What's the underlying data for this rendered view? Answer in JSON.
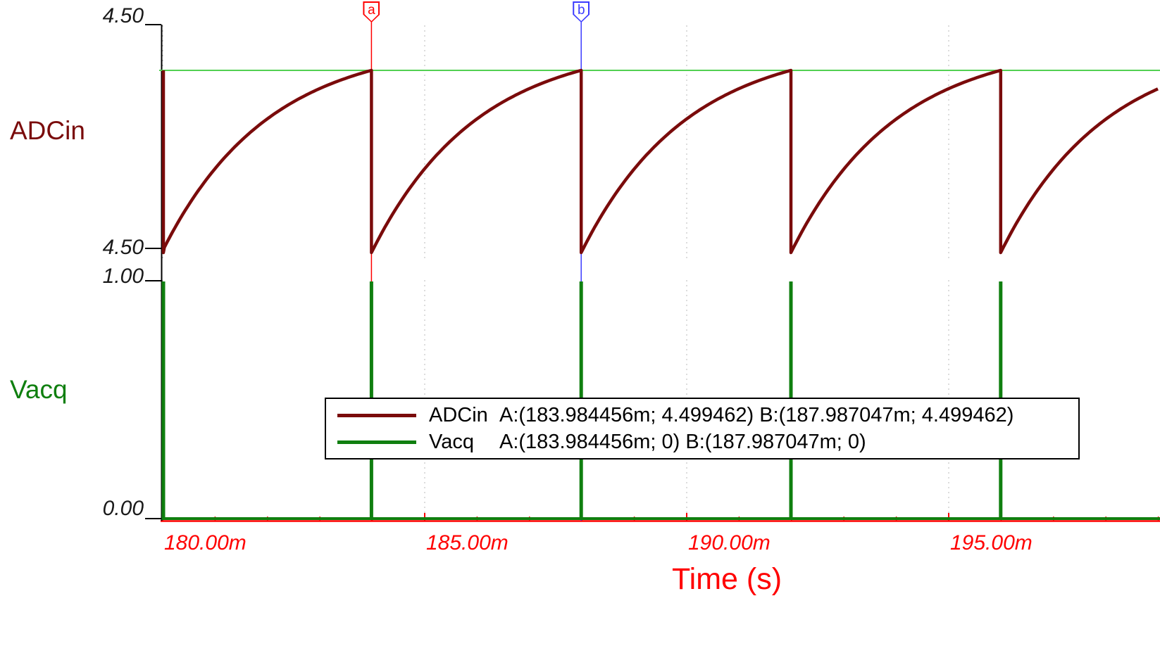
{
  "labels": {
    "adcin": "ADCin",
    "vacq": "Vacq",
    "time_axis": "Time (s)"
  },
  "y_axis": {
    "adcin_top": "4.50",
    "adcin_bottom": "4.50",
    "vacq_top": "1.00",
    "vacq_bottom": "0.00"
  },
  "x_axis": {
    "tick_labels": [
      "180.00m",
      "185.00m",
      "190.00m",
      "195.00m"
    ],
    "tick_values_ms": [
      180,
      185,
      190,
      195
    ],
    "minor_step_ms": 1,
    "unit": "s"
  },
  "cursors": [
    {
      "id": "a",
      "time_ms": 183.984456,
      "color": "#ff0000"
    },
    {
      "id": "b",
      "time_ms": 187.987047,
      "color": "#3b3bff"
    }
  ],
  "legend": {
    "rows": [
      {
        "name": "ADCin",
        "color": "#7a0b0b",
        "coords": "A:(183.984456m; 4.499462) B:(187.987047m; 4.499462)"
      },
      {
        "name": "Vacq",
        "color": "#0f7f0f",
        "coords": "A:(183.984456m; 0) B:(187.987047m; 0)"
      }
    ]
  },
  "colors": {
    "adcin": "#7a0b0b",
    "vacq": "#0f7f0f",
    "ref_line": "#52d052",
    "axis_red": "#ff0000",
    "axis_black": "#000000",
    "grid": "#b8b8b8",
    "y_label": "#1a1a1a"
  },
  "chart_data": [
    {
      "type": "line",
      "name": "ADCin",
      "waveform": "exponential-charge-sawtooth",
      "period_ms": 4.002591,
      "first_drop_ms": 179.981865,
      "peak_value": 4.499462,
      "tau_ms": 2.0,
      "reference_line_value": 4.499462,
      "y_tick_labels": [
        "4.50",
        "4.50"
      ],
      "x_range_ms": [
        179.95,
        199.03
      ],
      "x_ticks_ms": [
        180,
        185,
        190,
        195
      ],
      "grid": "vertical-dotted",
      "cursor_a": {
        "x_ms": 183.984456,
        "y": 4.499462
      },
      "cursor_b": {
        "x_ms": 187.987047,
        "y": 4.499462
      }
    },
    {
      "type": "line",
      "name": "Vacq",
      "waveform": "pulse-train",
      "pulse_times_ms": [
        179.981865,
        183.984456,
        187.987047,
        191.989638,
        195.992229
      ],
      "high": 1.0,
      "low": 0.0,
      "y_tick_labels": [
        "1.00",
        "0.00"
      ],
      "cursor_a": {
        "x_ms": 183.984456,
        "y": 0
      },
      "cursor_b": {
        "x_ms": 187.987047,
        "y": 0
      }
    }
  ]
}
